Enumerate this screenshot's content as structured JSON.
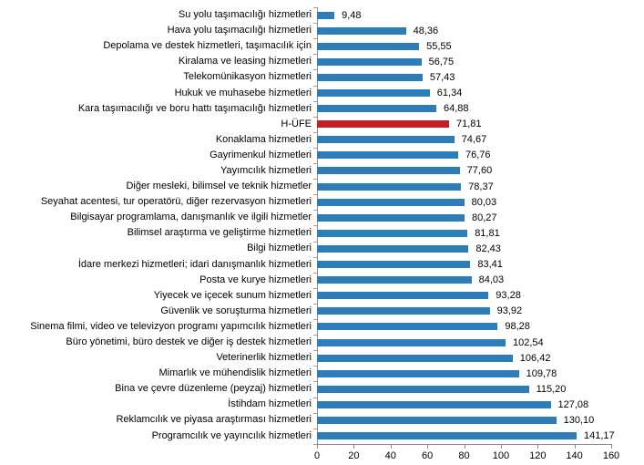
{
  "chart_data": {
    "type": "bar",
    "orientation": "horizontal",
    "title": "",
    "xlabel": "",
    "ylabel": "",
    "grid": false,
    "legend": "none",
    "xlim": [
      0,
      160
    ],
    "xticks": [
      0,
      20,
      40,
      60,
      80,
      100,
      120,
      140,
      160
    ],
    "xtick_labels": [
      "0",
      "20",
      "40",
      "60",
      "80",
      "100",
      "120",
      "140",
      "160"
    ],
    "bar_color": "#2e7cb8",
    "highlight_color": "#be2126",
    "highlight_index": 7,
    "highlight_category": "H-ÜFE",
    "categories": [
      "Su yolu taşımacılığı hizmetleri",
      "Hava yolu taşımacılığı hizmetleri",
      "Depolama ve destek hizmetleri, taşımacılık için",
      "Kiralama ve leasing hizmetleri",
      "Telekomünikasyon hizmetleri",
      "Hukuk ve muhasebe hizmetleri",
      "Kara taşımacılığı ve boru hattı taşımacılığı hizmetleri",
      "H-ÜFE",
      "Konaklama hizmetleri",
      "Gayrimenkul hizmetleri",
      "Yayımcılık hizmetleri",
      "Diğer mesleki, bilimsel ve teknik hizmetler",
      "Seyahat acentesi, tur operatörü, diğer rezervasyon hizmetleri",
      "Bilgisayar programlama, danışmanlık ve ilgili hizmetler",
      "Bilimsel araştırma ve geliştirme hizmetleri",
      "Bilgi hizmetleri",
      "İdare merkezi hizmetleri; idari danışmanlık hizmetleri",
      "Posta ve kurye hizmetleri",
      "Yiyecek ve içecek sunum hizmetleri",
      "Güvenlik ve soruşturma hizmetleri",
      "Sinema filmi, video ve televizyon programı yapımcılık hizmetleri",
      "Büro yönetimi, büro destek ve diğer iş destek hizmetleri",
      "Veterinerlik hizmetleri",
      "Mimarlık ve mühendislik hizmetleri",
      "Bina ve çevre düzenleme (peyzaj) hizmetleri",
      "İstihdam hizmetleri",
      "Reklamcılık ve piyasa araştırması hizmetleri",
      "Programcılık ve yayıncılık hizmetleri"
    ],
    "values": [
      9.48,
      48.36,
      55.55,
      56.75,
      57.43,
      61.34,
      64.88,
      71.81,
      74.67,
      76.76,
      77.6,
      78.37,
      80.03,
      80.27,
      81.81,
      82.43,
      83.41,
      84.03,
      93.28,
      93.92,
      98.28,
      102.54,
      106.42,
      109.78,
      115.2,
      127.08,
      130.1,
      141.17
    ],
    "value_labels": [
      "9,48",
      "48,36",
      "55,55",
      "56,75",
      "57,43",
      "61,34",
      "64,88",
      "71,81",
      "74,67",
      "76,76",
      "77,60",
      "78,37",
      "80,03",
      "80,27",
      "81,81",
      "82,43",
      "83,41",
      "84,03",
      "93,28",
      "93,92",
      "98,28",
      "102,54",
      "106,42",
      "109,78",
      "115,20",
      "127,08",
      "130,10",
      "141,17"
    ]
  }
}
